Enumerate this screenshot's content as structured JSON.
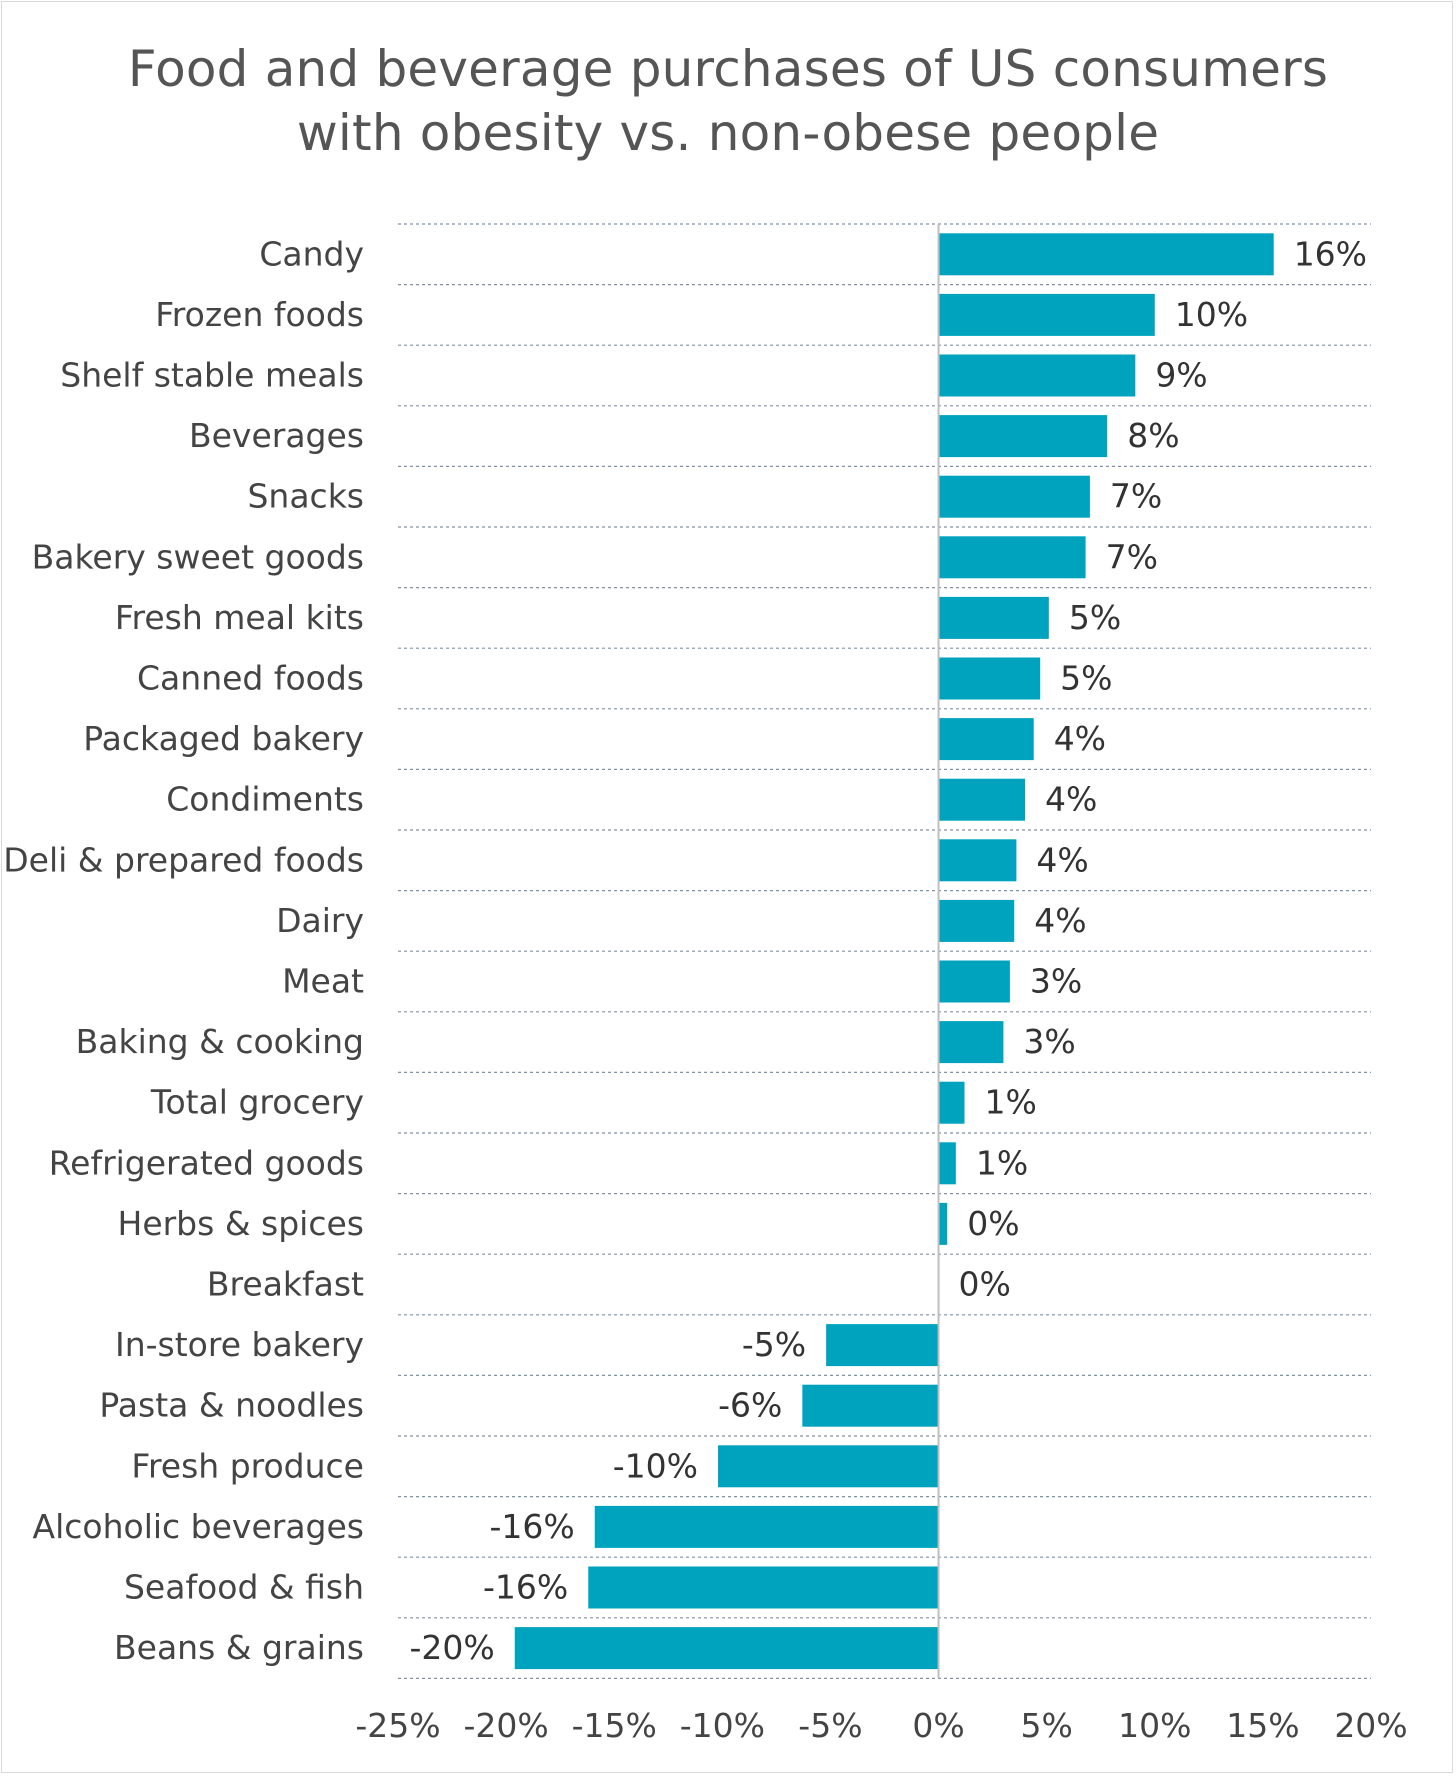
{
  "chart_data": {
    "type": "bar",
    "orientation": "horizontal",
    "title": "Food and beverage purchases of US consumers with obesity vs. non-obese people",
    "title_lines": [
      "Food and beverage purchases of US consumers",
      "with obesity vs. non-obese people"
    ],
    "categories": [
      "Candy",
      "Frozen foods",
      "Shelf stable meals",
      "Beverages",
      "Snacks",
      "Bakery sweet goods",
      "Fresh meal kits",
      "Canned foods",
      "Packaged bakery",
      "Condiments",
      "Deli & prepared foods",
      "Dairy",
      "Meat",
      "Baking & cooking",
      "Total grocery",
      "Refrigerated goods",
      "Herbs & spices",
      "Breakfast",
      "In-store bakery",
      "Pasta & noodles",
      "Fresh produce",
      "Alcoholic beverages",
      "Seafood & fish",
      "Beans & grains"
    ],
    "values": [
      15.5,
      10.0,
      9.1,
      7.8,
      7.0,
      6.8,
      5.1,
      4.7,
      4.4,
      4.0,
      3.6,
      3.5,
      3.3,
      3.0,
      1.2,
      0.8,
      0.4,
      0.0,
      -5.2,
      -6.3,
      -10.2,
      -15.9,
      -16.2,
      -19.6
    ],
    "data_labels": [
      "16%",
      "10%",
      "9%",
      "8%",
      "7%",
      "7%",
      "5%",
      "5%",
      "4%",
      "4%",
      "4%",
      "4%",
      "3%",
      "3%",
      "1%",
      "1%",
      "0%",
      "0%",
      "-5%",
      "-6%",
      "-10%",
      "-16%",
      "-16%",
      "-20%"
    ],
    "xlim": [
      -25,
      20
    ],
    "xticks": [
      -25,
      -20,
      -15,
      -10,
      -5,
      0,
      5,
      10,
      15,
      20
    ],
    "xtick_labels": [
      "-25%",
      "-20%",
      "-15%",
      "-10%",
      "-5%",
      "0%",
      "5%",
      "10%",
      "15%",
      "20%"
    ],
    "bar_color": "#00A3BE",
    "gridlines": "horizontal dashed",
    "legend": "none"
  }
}
